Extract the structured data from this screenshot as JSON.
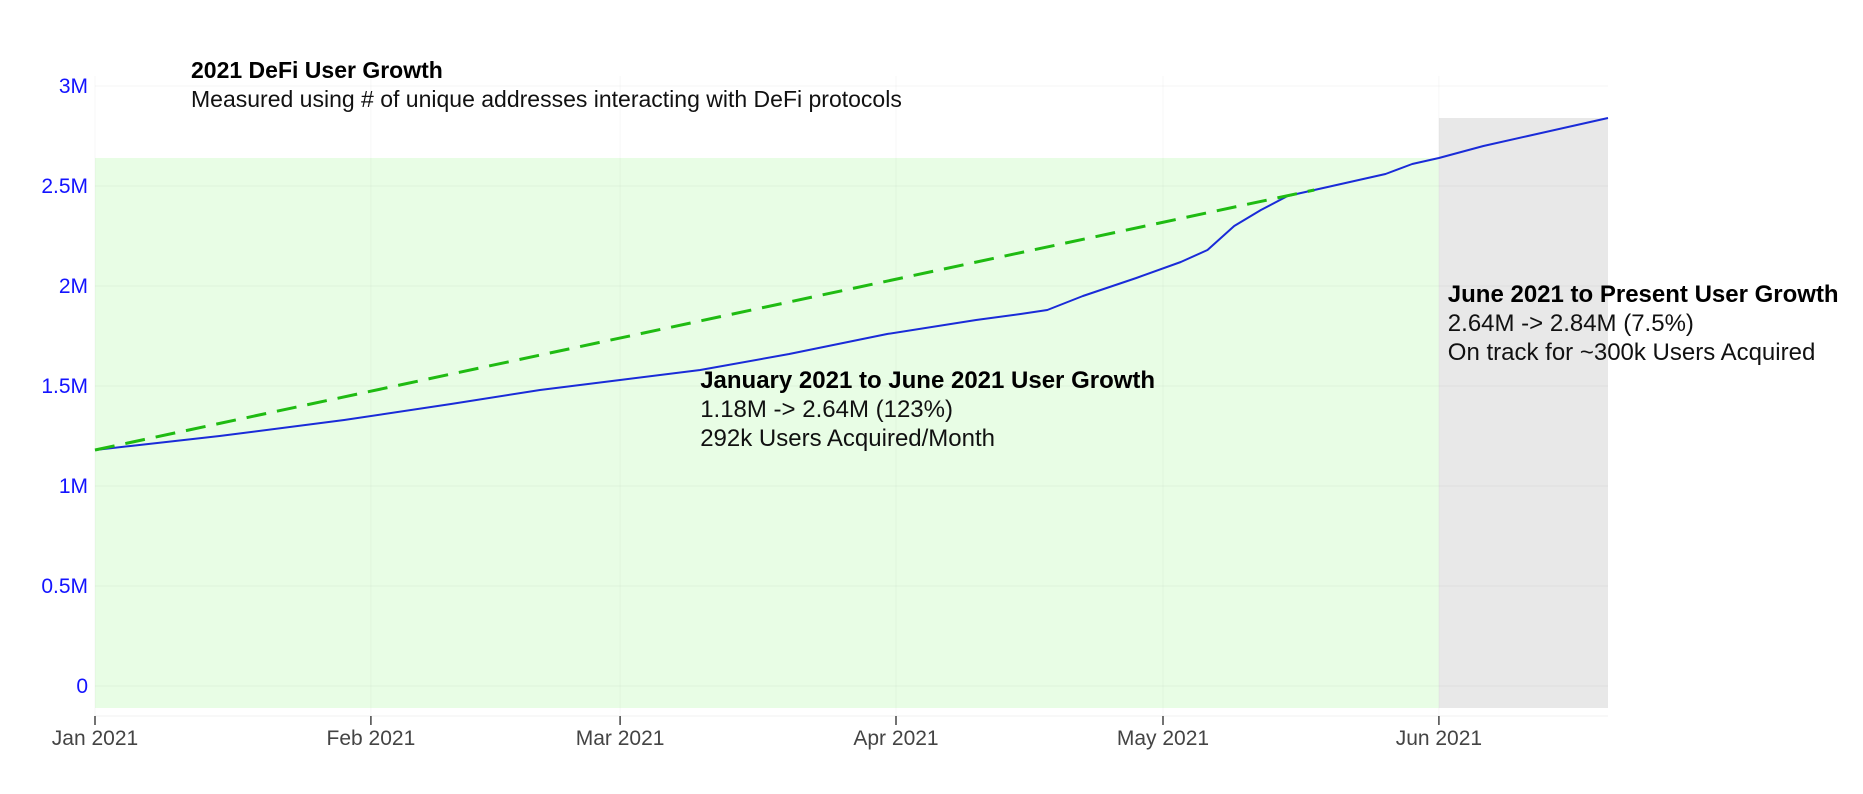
{
  "chart_data": {
    "type": "line",
    "title": "2021 DeFi User Growth",
    "subtitle": "Measured using # of unique addresses interacting with DeFi protocols",
    "xlabel": "",
    "ylabel": "",
    "x_range": [
      "2021-01-01",
      "2021-06-20"
    ],
    "ylim": [
      -0.11,
      3.0
    ],
    "y_ticks": [
      0,
      0.5,
      1,
      1.5,
      2,
      2.5,
      3
    ],
    "y_tick_labels": [
      "0",
      "0.5M",
      "1M",
      "1.5M",
      "2M",
      "2.5M",
      "3M"
    ],
    "x_ticks": [
      "2021-01-01",
      "2021-02-01",
      "2021-03-01",
      "2021-04-01",
      "2021-05-01",
      "2021-06-01"
    ],
    "x_tick_labels": [
      "Jan 2021",
      "Feb 2021",
      "Mar 2021",
      "Apr 2021",
      "May 2021",
      "Jun 2021"
    ],
    "grid": true,
    "colors": {
      "series": "#1a2bd8",
      "trend": "#1fbb12",
      "tick_label": "#1414ff",
      "shade_period1": "#e8fde5",
      "shade_period2": "#e8e8e8"
    },
    "shaded_regions": [
      {
        "x0": "2021-01-01",
        "x1": "2021-06-01",
        "y0": -0.11,
        "y1": 2.64,
        "color": "#e8fde5"
      },
      {
        "x0": "2021-06-01",
        "x1": "2021-06-20",
        "y0": -0.11,
        "y1": 2.84,
        "color": "#e8e8e8"
      }
    ],
    "series": [
      {
        "values": [
          {
            "x": "2021-01-01",
            "y": 1.18
          },
          {
            "x": "2021-01-05",
            "y": 1.2
          },
          {
            "x": "2021-01-15",
            "y": 1.25
          },
          {
            "x": "2021-01-29",
            "y": 1.33
          },
          {
            "x": "2021-02-10",
            "y": 1.41
          },
          {
            "x": "2021-02-20",
            "y": 1.48
          },
          {
            "x": "2021-03-01",
            "y": 1.53
          },
          {
            "x": "2021-03-10",
            "y": 1.58
          },
          {
            "x": "2021-03-20",
            "y": 1.66
          },
          {
            "x": "2021-03-31",
            "y": 1.76
          },
          {
            "x": "2021-04-10",
            "y": 1.83
          },
          {
            "x": "2021-04-15",
            "y": 1.86
          },
          {
            "x": "2021-04-18",
            "y": 1.88
          },
          {
            "x": "2021-04-22",
            "y": 1.95
          },
          {
            "x": "2021-04-28",
            "y": 2.04
          },
          {
            "x": "2021-05-03",
            "y": 2.12
          },
          {
            "x": "2021-05-06",
            "y": 2.18
          },
          {
            "x": "2021-05-09",
            "y": 2.3
          },
          {
            "x": "2021-05-12",
            "y": 2.38
          },
          {
            "x": "2021-05-15",
            "y": 2.45
          },
          {
            "x": "2021-05-18",
            "y": 2.48
          },
          {
            "x": "2021-05-22",
            "y": 2.52
          },
          {
            "x": "2021-05-26",
            "y": 2.56
          },
          {
            "x": "2021-05-29",
            "y": 2.61
          },
          {
            "x": "2021-06-01",
            "y": 2.64
          },
          {
            "x": "2021-06-06",
            "y": 2.7
          },
          {
            "x": "2021-06-11",
            "y": 2.75
          },
          {
            "x": "2021-06-16",
            "y": 2.8
          },
          {
            "x": "2021-06-20",
            "y": 2.84
          }
        ]
      },
      {
        "style": "dashed",
        "values": [
          {
            "x": "2021-01-01",
            "y": 1.18
          },
          {
            "x": "2021-05-18",
            "y": 2.48
          }
        ]
      }
    ],
    "annotations": [
      {
        "x": "2021-03-10",
        "y": 1.49,
        "lines": [
          "January 2021 to June 2021 User Growth",
          "1.18M -> 2.64M (123%)",
          "292k Users Acquired/Month"
        ]
      },
      {
        "x": "2021-06-02",
        "y": 1.92,
        "lines": [
          "June 2021 to Present User Growth",
          "2.64M -> 2.84M (7.5%)",
          "On track for ~300k Users Acquired"
        ]
      }
    ]
  }
}
